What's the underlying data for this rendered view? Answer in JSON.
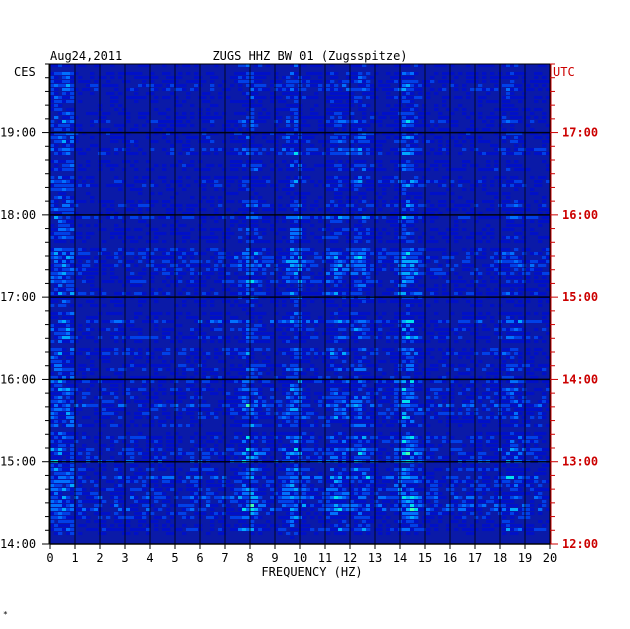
{
  "header": {
    "date": "Aug24,2011",
    "station": "ZUGS HHZ BW 01 (Zugsspitze)"
  },
  "corner_mark": "*",
  "chart_data": {
    "type": "heatmap",
    "title": "ZUGS HHZ BW 01 (Zugsspitze)",
    "date": "Aug24,2011",
    "xlabel": "FREQUENCY (HZ)",
    "xlim": [
      0,
      20
    ],
    "x_ticks": [
      "0",
      "1",
      "2",
      "3",
      "4",
      "5",
      "6",
      "7",
      "8",
      "9",
      "10",
      "11",
      "12",
      "13",
      "14",
      "15",
      "16",
      "17",
      "18",
      "19",
      "20"
    ],
    "grid": true,
    "y_left": {
      "label": "CES",
      "ticks": [
        "19:00",
        "18:00",
        "17:00",
        "16:00",
        "15:00",
        "14:00"
      ],
      "range": [
        "14:00",
        "19:50"
      ]
    },
    "y_right": {
      "label": "UTC",
      "ticks": [
        "17:00",
        "16:00",
        "15:00",
        "14:00",
        "13:00",
        "12:00"
      ],
      "range": [
        "12:00",
        "17:50"
      ]
    },
    "colors": {
      "background": "#0a1aa8",
      "low": "#0000a0",
      "mid": "#0088ff",
      "high": "#33ffcc",
      "peak": "#ffee00",
      "grid": "#000000",
      "left_axis": "#000000",
      "right_axis": "#cc0000"
    },
    "energy_bands_hz": [
      {
        "center": 8.0,
        "strength": 0.55
      },
      {
        "center": 9.8,
        "strength": 0.6
      },
      {
        "center": 11.5,
        "strength": 0.45
      },
      {
        "center": 12.4,
        "strength": 0.5
      },
      {
        "center": 14.3,
        "strength": 0.75
      },
      {
        "center": 18.5,
        "strength": 0.35
      }
    ]
  }
}
